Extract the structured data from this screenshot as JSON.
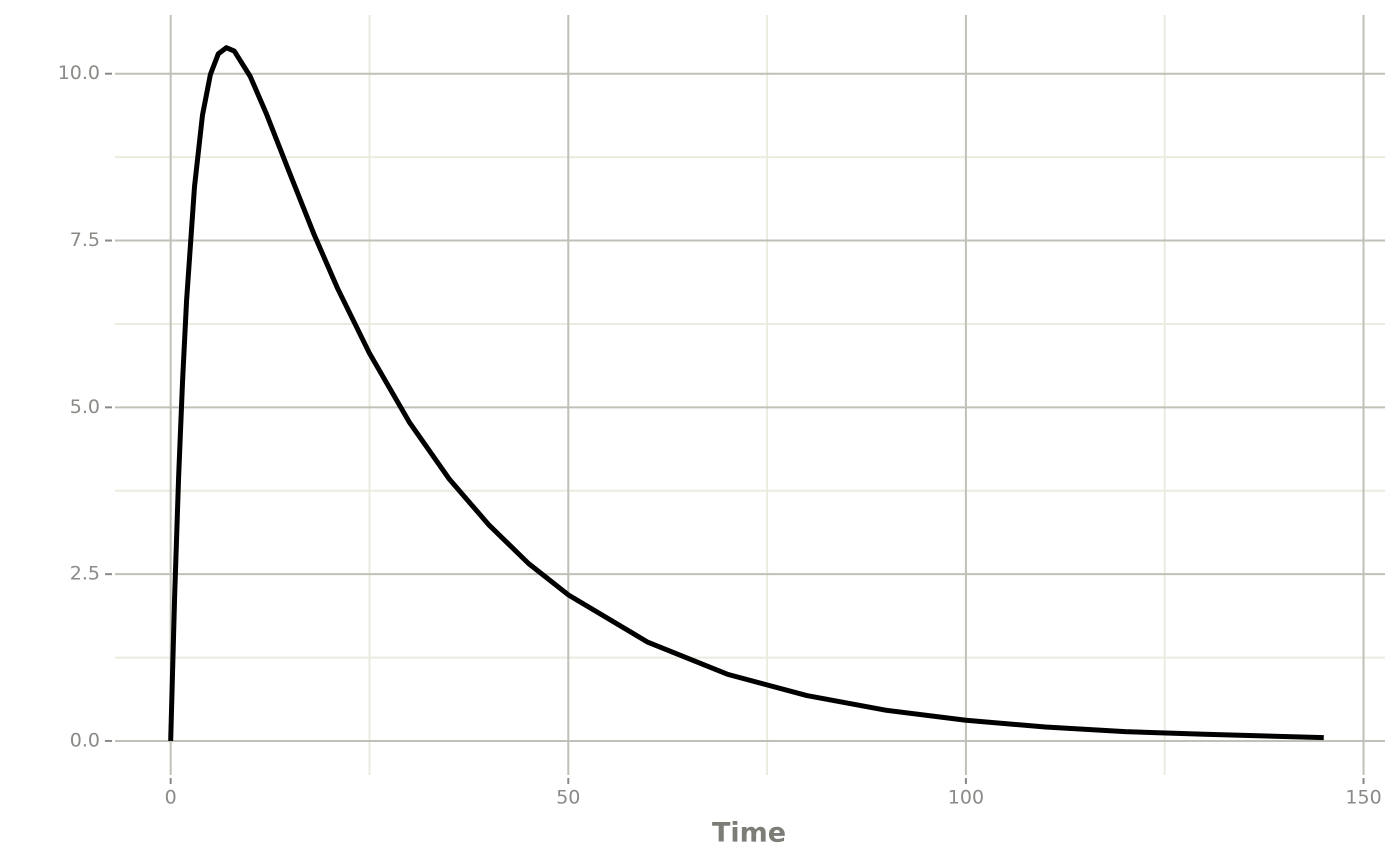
{
  "chart_data": {
    "type": "line",
    "x_label": "Time",
    "x": [
      0,
      0.5,
      1,
      1.5,
      2,
      3,
      4,
      5,
      6,
      7,
      8,
      10,
      12,
      15,
      18,
      21,
      25,
      30,
      35,
      40,
      45,
      50,
      60,
      70,
      80,
      90,
      100,
      110,
      120,
      130,
      145
    ],
    "series": [
      {
        "color": "#000000",
        "values": [
          0,
          2.17,
          3.96,
          5.41,
          6.6,
          8.31,
          9.38,
          9.99,
          10.3,
          10.39,
          10.34,
          9.96,
          9.41,
          8.5,
          7.6,
          6.78,
          5.81,
          4.78,
          3.93,
          3.24,
          2.66,
          2.19,
          1.48,
          1.0,
          0.68,
          0.46,
          0.31,
          0.21,
          0.14,
          0.1,
          0.05
        ]
      }
    ],
    "xlim": [
      -7,
      152.7
    ],
    "ylim": [
      -0.51,
      10.88
    ],
    "xticks": [
      0,
      50,
      100,
      150
    ],
    "yticks": [
      {
        "value": 0,
        "label": "0.0"
      },
      2.5,
      {
        "value": 5,
        "label": "5.0"
      },
      7.5,
      {
        "value": 10,
        "label": "10.0"
      }
    ],
    "x_minor_ticks": [
      25,
      75,
      125
    ],
    "y_minor_ticks": [
      1.25,
      3.75,
      6.25,
      8.75
    ],
    "grid": true
  }
}
